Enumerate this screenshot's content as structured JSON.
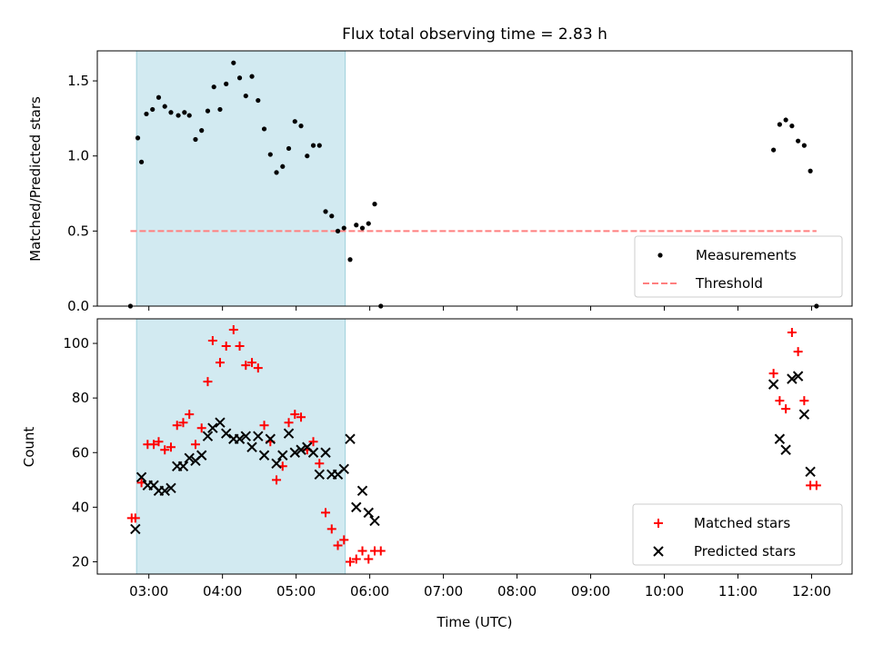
{
  "title": "Flux total observing time = 2.83 h",
  "colors": {
    "measurement": "#000000",
    "threshold": "#ff7f7f",
    "matched": "#ff0000",
    "predicted": "#000000",
    "shade": "#add8e6"
  },
  "chart_data": [
    {
      "type": "scatter",
      "panel": "top",
      "ylabel": "Matched/Predicted stars",
      "xlim": [
        "02:18",
        "12:33"
      ],
      "ylim": [
        0,
        1.7
      ],
      "yticks": [
        0.0,
        0.5,
        1.0,
        1.5
      ],
      "ytick_labels": [
        "0.0",
        "0.5",
        "1.0",
        "1.5"
      ],
      "shaded_span": [
        "02:50",
        "05:40"
      ],
      "legend_position": "lower right",
      "series": [
        {
          "name": "Measurements",
          "marker": "dot",
          "points": [
            [
              "02:45",
              0.0
            ],
            [
              "02:51",
              1.12
            ],
            [
              "02:54",
              0.96
            ],
            [
              "02:58",
              1.28
            ],
            [
              "03:03",
              1.31
            ],
            [
              "03:08",
              1.39
            ],
            [
              "03:13",
              1.33
            ],
            [
              "03:18",
              1.29
            ],
            [
              "03:24",
              1.27
            ],
            [
              "03:29",
              1.29
            ],
            [
              "03:33",
              1.27
            ],
            [
              "03:38",
              1.11
            ],
            [
              "03:43",
              1.17
            ],
            [
              "03:48",
              1.3
            ],
            [
              "03:53",
              1.46
            ],
            [
              "03:58",
              1.31
            ],
            [
              "04:03",
              1.48
            ],
            [
              "04:09",
              1.62
            ],
            [
              "04:14",
              1.52
            ],
            [
              "04:19",
              1.4
            ],
            [
              "04:24",
              1.53
            ],
            [
              "04:29",
              1.37
            ],
            [
              "04:34",
              1.18
            ],
            [
              "04:39",
              1.01
            ],
            [
              "04:44",
              0.89
            ],
            [
              "04:49",
              0.93
            ],
            [
              "04:54",
              1.05
            ],
            [
              "04:59",
              1.23
            ],
            [
              "05:04",
              1.2
            ],
            [
              "05:09",
              1.0
            ],
            [
              "05:14",
              1.07
            ],
            [
              "05:19",
              1.07
            ],
            [
              "05:24",
              0.63
            ],
            [
              "05:29",
              0.6
            ],
            [
              "05:34",
              0.5
            ],
            [
              "05:39",
              0.52
            ],
            [
              "05:44",
              0.31
            ],
            [
              "05:49",
              0.54
            ],
            [
              "05:54",
              0.52
            ],
            [
              "05:59",
              0.55
            ],
            [
              "06:04",
              0.68
            ],
            [
              "06:09",
              0.0
            ],
            [
              "11:29",
              1.04
            ],
            [
              "11:34",
              1.21
            ],
            [
              "11:39",
              1.24
            ],
            [
              "11:44",
              1.2
            ],
            [
              "11:49",
              1.1
            ],
            [
              "11:54",
              1.07
            ],
            [
              "11:59",
              0.9
            ],
            [
              "12:04",
              0.0
            ]
          ]
        },
        {
          "name": "Threshold",
          "marker": "dashed-line",
          "points": [
            [
              "02:45",
              0.5
            ],
            [
              "12:04",
              0.5
            ]
          ]
        }
      ]
    },
    {
      "type": "scatter",
      "panel": "bottom",
      "xlabel": "Time (UTC)",
      "ylabel": "Count",
      "xlim": [
        "02:18",
        "12:33"
      ],
      "ylim": [
        15.5,
        109
      ],
      "xticks": [
        "03:00",
        "04:00",
        "05:00",
        "06:00",
        "07:00",
        "08:00",
        "09:00",
        "10:00",
        "11:00",
        "12:00"
      ],
      "yticks": [
        20,
        40,
        60,
        80,
        100
      ],
      "ytick_labels": [
        "20",
        "40",
        "60",
        "80",
        "100"
      ],
      "shaded_span": [
        "02:50",
        "05:40"
      ],
      "legend_position": "lower right",
      "series": [
        {
          "name": "Matched stars",
          "marker": "plus",
          "points": [
            [
              "02:46",
              36
            ],
            [
              "02:49",
              36
            ],
            [
              "02:54",
              49
            ],
            [
              "02:59",
              63
            ],
            [
              "03:04",
              63
            ],
            [
              "03:08",
              64
            ],
            [
              "03:13",
              61
            ],
            [
              "03:18",
              62
            ],
            [
              "03:23",
              70
            ],
            [
              "03:28",
              71
            ],
            [
              "03:33",
              74
            ],
            [
              "03:38",
              63
            ],
            [
              "03:43",
              69
            ],
            [
              "03:48",
              86
            ],
            [
              "03:52",
              101
            ],
            [
              "03:58",
              93
            ],
            [
              "04:03",
              99
            ],
            [
              "04:09",
              105
            ],
            [
              "04:14",
              99
            ],
            [
              "04:19",
              92
            ],
            [
              "04:24",
              93
            ],
            [
              "04:29",
              91
            ],
            [
              "04:34",
              70
            ],
            [
              "04:39",
              64
            ],
            [
              "04:44",
              50
            ],
            [
              "04:49",
              55
            ],
            [
              "04:54",
              71
            ],
            [
              "04:59",
              74
            ],
            [
              "05:04",
              73
            ],
            [
              "05:09",
              61
            ],
            [
              "05:14",
              64
            ],
            [
              "05:19",
              56
            ],
            [
              "05:24",
              38
            ],
            [
              "05:29",
              32
            ],
            [
              "05:34",
              26
            ],
            [
              "05:39",
              28
            ],
            [
              "05:44",
              20
            ],
            [
              "05:49",
              21
            ],
            [
              "05:54",
              24
            ],
            [
              "05:59",
              21
            ],
            [
              "06:04",
              24
            ],
            [
              "06:09",
              24
            ],
            [
              "11:29",
              89
            ],
            [
              "11:34",
              79
            ],
            [
              "11:39",
              76
            ],
            [
              "11:44",
              104
            ],
            [
              "11:49",
              97
            ],
            [
              "11:54",
              79
            ],
            [
              "11:59",
              48
            ],
            [
              "12:04",
              48
            ]
          ]
        },
        {
          "name": "Predicted stars",
          "marker": "x",
          "points": [
            [
              "02:49",
              32
            ],
            [
              "02:54",
              51
            ],
            [
              "02:59",
              48
            ],
            [
              "03:04",
              48
            ],
            [
              "03:08",
              46
            ],
            [
              "03:13",
              46
            ],
            [
              "03:18",
              47
            ],
            [
              "03:23",
              55
            ],
            [
              "03:28",
              55
            ],
            [
              "03:33",
              58
            ],
            [
              "03:38",
              57
            ],
            [
              "03:43",
              59
            ],
            [
              "03:48",
              66
            ],
            [
              "03:52",
              69
            ],
            [
              "03:58",
              71
            ],
            [
              "04:03",
              67
            ],
            [
              "04:09",
              65
            ],
            [
              "04:14",
              65
            ],
            [
              "04:19",
              66
            ],
            [
              "04:24",
              62
            ],
            [
              "04:29",
              66
            ],
            [
              "04:34",
              59
            ],
            [
              "04:39",
              65
            ],
            [
              "04:44",
              56
            ],
            [
              "04:49",
              59
            ],
            [
              "04:54",
              67
            ],
            [
              "04:59",
              60
            ],
            [
              "05:04",
              61
            ],
            [
              "05:09",
              62
            ],
            [
              "05:14",
              60
            ],
            [
              "05:19",
              52
            ],
            [
              "05:24",
              60
            ],
            [
              "05:29",
              52
            ],
            [
              "05:34",
              52
            ],
            [
              "05:39",
              54
            ],
            [
              "05:44",
              65
            ],
            [
              "05:49",
              40
            ],
            [
              "05:54",
              46
            ],
            [
              "05:59",
              38
            ],
            [
              "06:04",
              35
            ],
            [
              "11:29",
              85
            ],
            [
              "11:34",
              65
            ],
            [
              "11:39",
              61
            ],
            [
              "11:44",
              87
            ],
            [
              "11:49",
              88
            ],
            [
              "11:54",
              74
            ],
            [
              "11:59",
              53
            ]
          ]
        }
      ]
    }
  ]
}
